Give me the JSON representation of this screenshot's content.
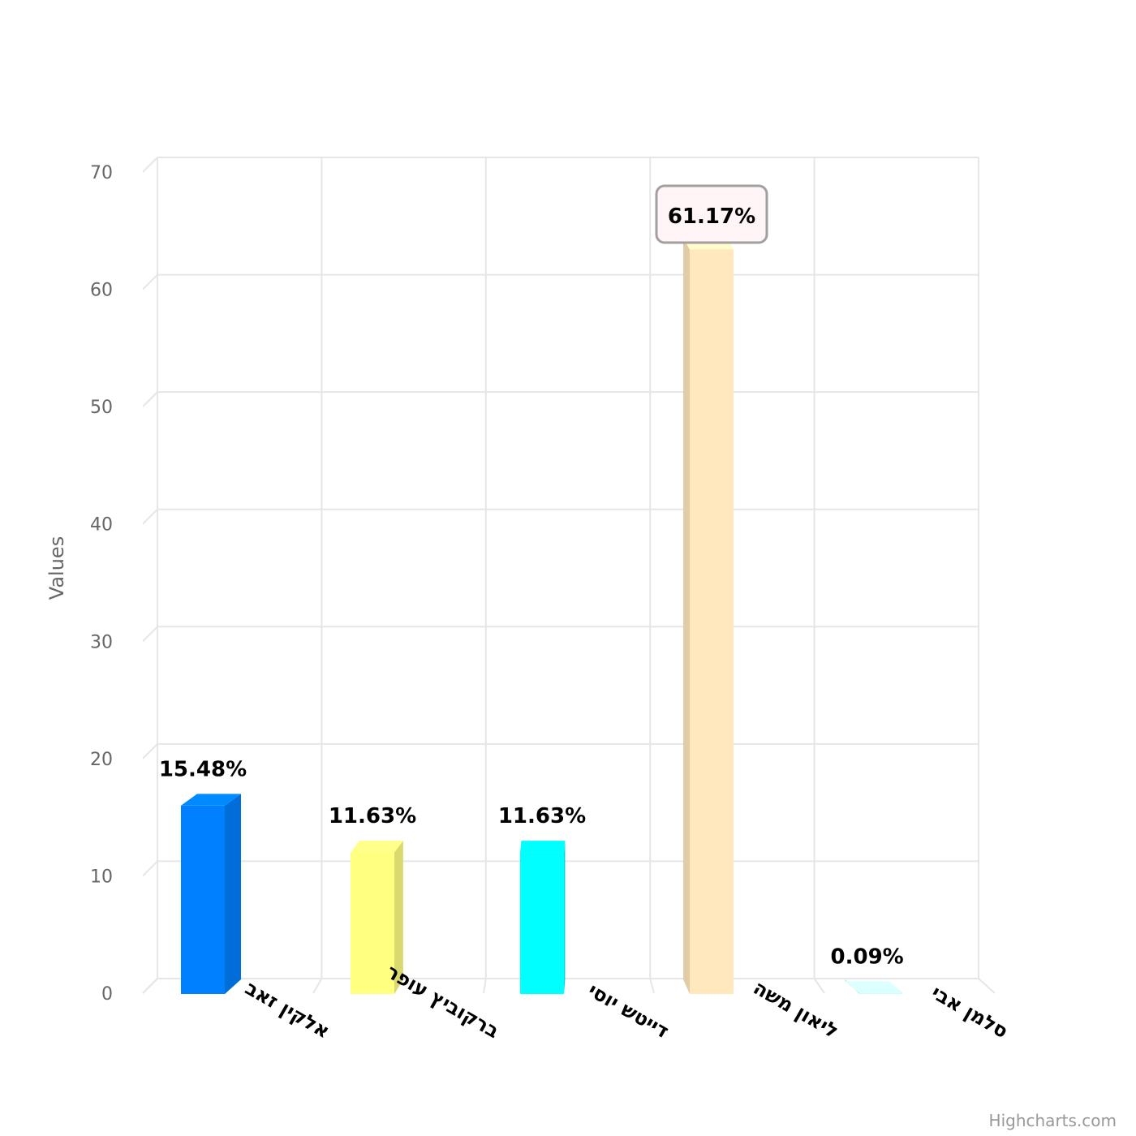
{
  "chart_data": {
    "type": "bar",
    "categories": [
      "אלקין זאב",
      "ברקוביץ עופר",
      "דייטש יוסי",
      "ליאון משה",
      "סלמן אבי"
    ],
    "series": [
      {
        "values": [
          15.48,
          11.63,
          11.63,
          61.17,
          0.09
        ],
        "data_labels": [
          "15.48%",
          "11.63%",
          "11.63%",
          "61.17%",
          "0.09%"
        ],
        "colors": [
          "#0080ff",
          "#ffff80",
          "#00ffff",
          "#ffe8bd",
          "#ccffff"
        ]
      }
    ],
    "ylabel": "Values",
    "ylim": [
      0,
      70
    ],
    "yticks": [
      0,
      10,
      20,
      30,
      40,
      50,
      60,
      70
    ],
    "grid": true,
    "highlighted_index": 3,
    "credits": "Highcharts.com"
  }
}
